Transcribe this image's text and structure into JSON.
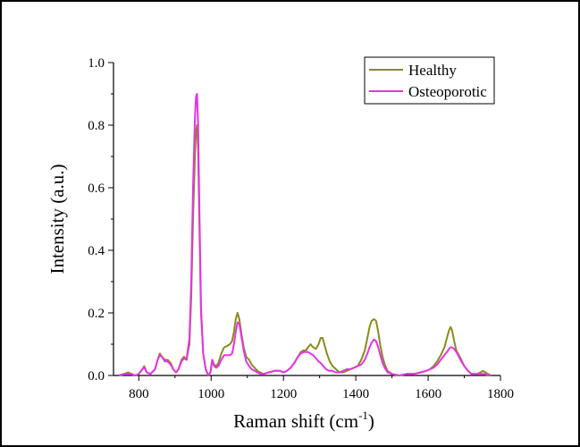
{
  "chart_data": {
    "type": "line",
    "xlabel": "Raman shift (cm",
    "xlabel_sup": "-1",
    "xlabel_end": ")",
    "ylabel": "Intensity (a.u.)",
    "xlim": [
      730,
      1800
    ],
    "ylim": [
      0,
      1.0
    ],
    "xticks": [
      800,
      1000,
      1200,
      1400,
      1600,
      1800
    ],
    "yticks": [
      0.0,
      0.2,
      0.4,
      0.6,
      0.8,
      1.0
    ],
    "xtick_labels": [
      "800",
      "1000",
      "1200",
      "1400",
      "1600",
      "1800"
    ],
    "ytick_labels": [
      "0.0",
      "0.2",
      "0.4",
      "0.6",
      "0.8",
      "1.0"
    ],
    "grid": false,
    "legend_position": "top-right",
    "series": [
      {
        "name": "Healthy",
        "color": "#8B8B1A",
        "points": [
          [
            745,
            0.0
          ],
          [
            760,
            0.005
          ],
          [
            770,
            0.01
          ],
          [
            780,
            0.005
          ],
          [
            790,
            0.0
          ],
          [
            800,
            0.005
          ],
          [
            810,
            0.02
          ],
          [
            815,
            0.03
          ],
          [
            822,
            0.01
          ],
          [
            832,
            0.005
          ],
          [
            845,
            0.02
          ],
          [
            852,
            0.05
          ],
          [
            858,
            0.07
          ],
          [
            864,
            0.06
          ],
          [
            872,
            0.05
          ],
          [
            880,
            0.05
          ],
          [
            888,
            0.04
          ],
          [
            895,
            0.02
          ],
          [
            903,
            0.01
          ],
          [
            910,
            0.02
          ],
          [
            918,
            0.05
          ],
          [
            925,
            0.06
          ],
          [
            932,
            0.05
          ],
          [
            940,
            0.1
          ],
          [
            945,
            0.25
          ],
          [
            950,
            0.5
          ],
          [
            955,
            0.7
          ],
          [
            958,
            0.78
          ],
          [
            961,
            0.8
          ],
          [
            964,
            0.72
          ],
          [
            968,
            0.45
          ],
          [
            972,
            0.2
          ],
          [
            978,
            0.07
          ],
          [
            985,
            0.02
          ],
          [
            992,
            0.0
          ],
          [
            998,
            0.01
          ],
          [
            1003,
            0.05
          ],
          [
            1008,
            0.035
          ],
          [
            1014,
            0.03
          ],
          [
            1020,
            0.04
          ],
          [
            1028,
            0.07
          ],
          [
            1036,
            0.09
          ],
          [
            1045,
            0.095
          ],
          [
            1052,
            0.1
          ],
          [
            1058,
            0.11
          ],
          [
            1063,
            0.14
          ],
          [
            1068,
            0.18
          ],
          [
            1073,
            0.2
          ],
          [
            1078,
            0.18
          ],
          [
            1083,
            0.14
          ],
          [
            1090,
            0.09
          ],
          [
            1097,
            0.06
          ],
          [
            1105,
            0.05
          ],
          [
            1112,
            0.035
          ],
          [
            1120,
            0.025
          ],
          [
            1128,
            0.015
          ],
          [
            1135,
            0.01
          ],
          [
            1145,
            0.005
          ],
          [
            1160,
            0.01
          ],
          [
            1175,
            0.015
          ],
          [
            1190,
            0.015
          ],
          [
            1200,
            0.01
          ],
          [
            1210,
            0.015
          ],
          [
            1220,
            0.025
          ],
          [
            1230,
            0.04
          ],
          [
            1240,
            0.06
          ],
          [
            1248,
            0.075
          ],
          [
            1255,
            0.08
          ],
          [
            1262,
            0.08
          ],
          [
            1268,
            0.09
          ],
          [
            1275,
            0.1
          ],
          [
            1282,
            0.09
          ],
          [
            1290,
            0.085
          ],
          [
            1297,
            0.1
          ],
          [
            1303,
            0.12
          ],
          [
            1308,
            0.12
          ],
          [
            1313,
            0.1
          ],
          [
            1320,
            0.07
          ],
          [
            1328,
            0.045
          ],
          [
            1336,
            0.03
          ],
          [
            1345,
            0.02
          ],
          [
            1355,
            0.01
          ],
          [
            1365,
            0.01
          ],
          [
            1375,
            0.015
          ],
          [
            1385,
            0.02
          ],
          [
            1395,
            0.025
          ],
          [
            1405,
            0.03
          ],
          [
            1415,
            0.05
          ],
          [
            1425,
            0.08
          ],
          [
            1432,
            0.12
          ],
          [
            1438,
            0.155
          ],
          [
            1444,
            0.175
          ],
          [
            1450,
            0.18
          ],
          [
            1456,
            0.175
          ],
          [
            1462,
            0.14
          ],
          [
            1468,
            0.095
          ],
          [
            1474,
            0.06
          ],
          [
            1480,
            0.035
          ],
          [
            1488,
            0.015
          ],
          [
            1500,
            0.005
          ],
          [
            1520,
            0.0
          ],
          [
            1540,
            0.005
          ],
          [
            1560,
            0.005
          ],
          [
            1580,
            0.01
          ],
          [
            1595,
            0.015
          ],
          [
            1605,
            0.02
          ],
          [
            1615,
            0.03
          ],
          [
            1625,
            0.045
          ],
          [
            1635,
            0.065
          ],
          [
            1645,
            0.09
          ],
          [
            1652,
            0.12
          ],
          [
            1658,
            0.145
          ],
          [
            1662,
            0.155
          ],
          [
            1666,
            0.145
          ],
          [
            1672,
            0.11
          ],
          [
            1678,
            0.08
          ],
          [
            1685,
            0.065
          ],
          [
            1692,
            0.05
          ],
          [
            1700,
            0.03
          ],
          [
            1710,
            0.015
          ],
          [
            1720,
            0.005
          ],
          [
            1735,
            0.005
          ],
          [
            1745,
            0.01
          ],
          [
            1752,
            0.015
          ],
          [
            1758,
            0.01
          ],
          [
            1765,
            0.005
          ],
          [
            1775,
            0.0
          ]
        ]
      },
      {
        "name": "Osteoporotic",
        "color": "#E633E6",
        "points": [
          [
            745,
            0.0
          ],
          [
            760,
            0.005
          ],
          [
            770,
            0.005
          ],
          [
            780,
            0.005
          ],
          [
            790,
            0.0
          ],
          [
            800,
            0.005
          ],
          [
            810,
            0.02
          ],
          [
            815,
            0.025
          ],
          [
            822,
            0.01
          ],
          [
            832,
            0.005
          ],
          [
            845,
            0.02
          ],
          [
            852,
            0.05
          ],
          [
            858,
            0.065
          ],
          [
            864,
            0.06
          ],
          [
            872,
            0.045
          ],
          [
            880,
            0.045
          ],
          [
            888,
            0.035
          ],
          [
            895,
            0.02
          ],
          [
            903,
            0.01
          ],
          [
            910,
            0.02
          ],
          [
            918,
            0.045
          ],
          [
            925,
            0.055
          ],
          [
            932,
            0.05
          ],
          [
            940,
            0.12
          ],
          [
            945,
            0.3
          ],
          [
            950,
            0.6
          ],
          [
            955,
            0.82
          ],
          [
            958,
            0.89
          ],
          [
            961,
            0.9
          ],
          [
            964,
            0.8
          ],
          [
            968,
            0.5
          ],
          [
            972,
            0.22
          ],
          [
            978,
            0.07
          ],
          [
            985,
            0.02
          ],
          [
            992,
            0.0
          ],
          [
            998,
            0.01
          ],
          [
            1003,
            0.05
          ],
          [
            1008,
            0.03
          ],
          [
            1014,
            0.025
          ],
          [
            1020,
            0.03
          ],
          [
            1028,
            0.05
          ],
          [
            1036,
            0.065
          ],
          [
            1045,
            0.065
          ],
          [
            1052,
            0.065
          ],
          [
            1058,
            0.07
          ],
          [
            1063,
            0.1
          ],
          [
            1068,
            0.14
          ],
          [
            1073,
            0.17
          ],
          [
            1078,
            0.165
          ],
          [
            1083,
            0.13
          ],
          [
            1090,
            0.08
          ],
          [
            1097,
            0.045
          ],
          [
            1105,
            0.03
          ],
          [
            1112,
            0.02
          ],
          [
            1120,
            0.015
          ],
          [
            1128,
            0.01
          ],
          [
            1135,
            0.005
          ],
          [
            1145,
            0.005
          ],
          [
            1160,
            0.01
          ],
          [
            1175,
            0.015
          ],
          [
            1190,
            0.015
          ],
          [
            1200,
            0.01
          ],
          [
            1210,
            0.015
          ],
          [
            1220,
            0.025
          ],
          [
            1230,
            0.04
          ],
          [
            1240,
            0.06
          ],
          [
            1248,
            0.07
          ],
          [
            1255,
            0.075
          ],
          [
            1262,
            0.075
          ],
          [
            1268,
            0.075
          ],
          [
            1275,
            0.07
          ],
          [
            1282,
            0.065
          ],
          [
            1290,
            0.055
          ],
          [
            1297,
            0.045
          ],
          [
            1303,
            0.04
          ],
          [
            1310,
            0.03
          ],
          [
            1318,
            0.02
          ],
          [
            1326,
            0.015
          ],
          [
            1335,
            0.015
          ],
          [
            1345,
            0.01
          ],
          [
            1355,
            0.01
          ],
          [
            1365,
            0.015
          ],
          [
            1375,
            0.02
          ],
          [
            1385,
            0.02
          ],
          [
            1395,
            0.025
          ],
          [
            1405,
            0.03
          ],
          [
            1415,
            0.035
          ],
          [
            1425,
            0.05
          ],
          [
            1432,
            0.07
          ],
          [
            1438,
            0.09
          ],
          [
            1444,
            0.105
          ],
          [
            1450,
            0.115
          ],
          [
            1456,
            0.11
          ],
          [
            1462,
            0.09
          ],
          [
            1468,
            0.065
          ],
          [
            1474,
            0.04
          ],
          [
            1480,
            0.025
          ],
          [
            1488,
            0.01
          ],
          [
            1500,
            0.005
          ],
          [
            1520,
            0.0
          ],
          [
            1540,
            0.005
          ],
          [
            1560,
            0.005
          ],
          [
            1580,
            0.01
          ],
          [
            1595,
            0.015
          ],
          [
            1605,
            0.02
          ],
          [
            1615,
            0.025
          ],
          [
            1625,
            0.035
          ],
          [
            1635,
            0.05
          ],
          [
            1645,
            0.065
          ],
          [
            1652,
            0.075
          ],
          [
            1658,
            0.085
          ],
          [
            1662,
            0.09
          ],
          [
            1666,
            0.09
          ],
          [
            1672,
            0.085
          ],
          [
            1678,
            0.075
          ],
          [
            1685,
            0.06
          ],
          [
            1692,
            0.045
          ],
          [
            1700,
            0.03
          ],
          [
            1710,
            0.015
          ],
          [
            1720,
            0.005
          ],
          [
            1735,
            0.005
          ],
          [
            1745,
            0.005
          ],
          [
            1752,
            0.005
          ],
          [
            1758,
            0.005
          ],
          [
            1765,
            0.0
          ],
          [
            1775,
            0.0
          ]
        ]
      }
    ]
  }
}
